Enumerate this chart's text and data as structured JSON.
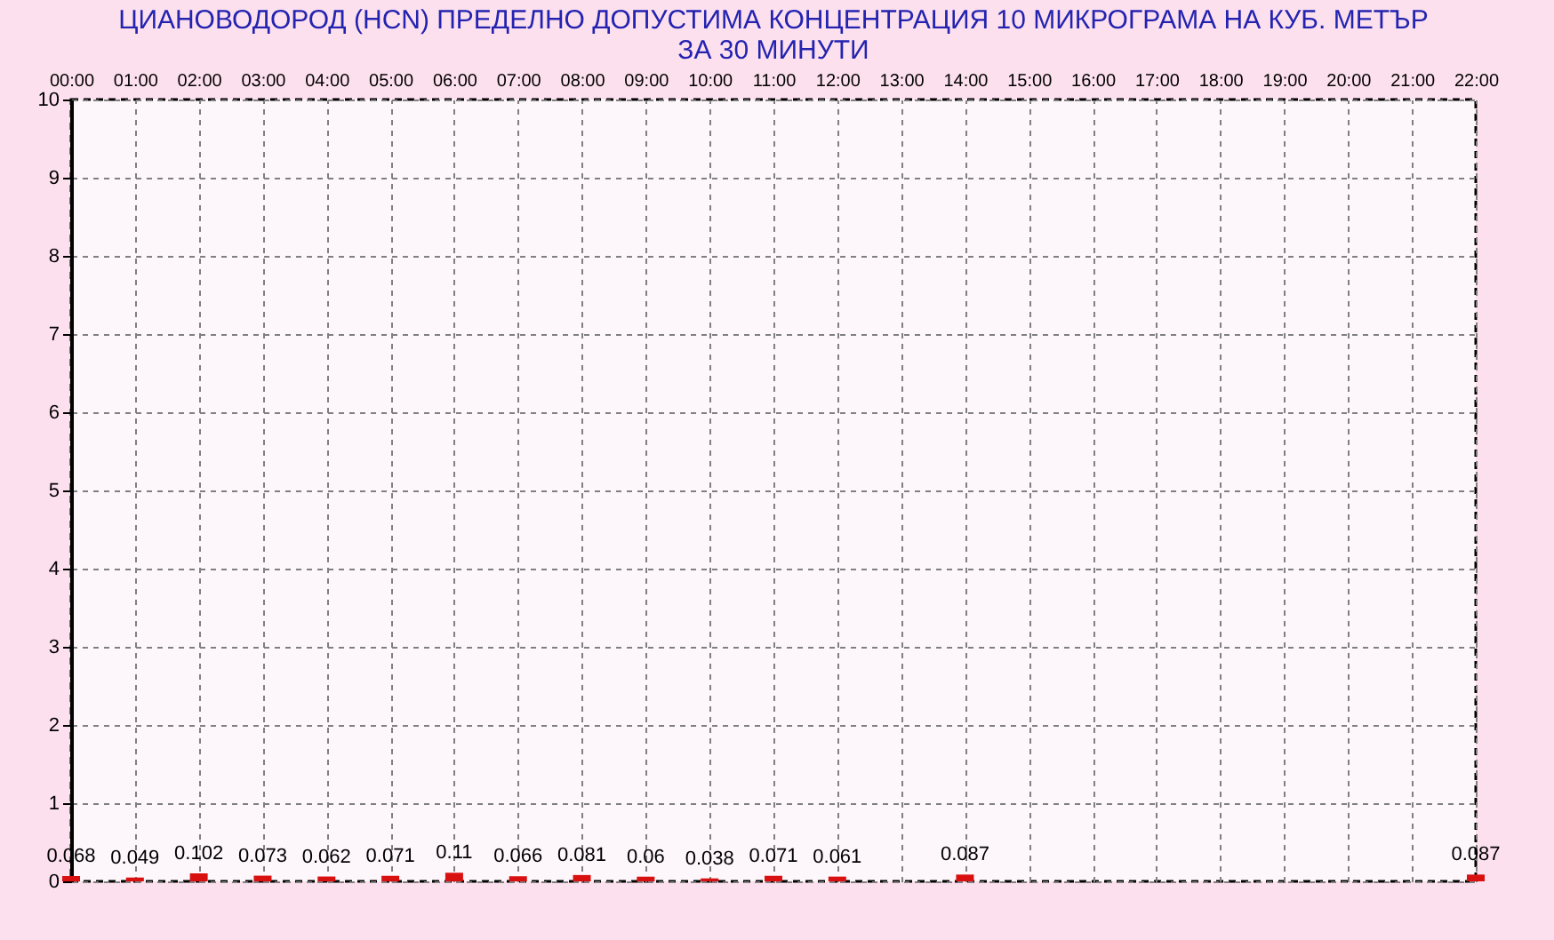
{
  "chart_data": {
    "type": "bar",
    "title": [
      "ЦИАНОВОДОРОД      (HCN)    ПРЕДЕЛНО ДОПУСТИМА КОНЦЕНТРАЦИЯ 10 МИКРОГРАМА  НА КУБ. МЕТЪР",
      "ЗА 30 МИНУТИ"
    ],
    "categories": [
      "00:00",
      "01:00",
      "02:00",
      "03:00",
      "04:00",
      "05:00",
      "06:00",
      "07:00",
      "08:00",
      "09:00",
      "10:00",
      "11:00",
      "12:00",
      "13:00",
      "14:00",
      "15:00",
      "16:00",
      "17:00",
      "18:00",
      "19:00",
      "20:00",
      "21:00",
      "22:00"
    ],
    "values": [
      0.068,
      0.049,
      0.102,
      0.073,
      0.062,
      0.071,
      0.11,
      0.066,
      0.081,
      0.06,
      0.038,
      0.071,
      0.061,
      null,
      0.087,
      null,
      null,
      null,
      null,
      null,
      null,
      null,
      0.087
    ],
    "color": "#d81010",
    "ylim": [
      0,
      10
    ],
    "yticks": [
      0,
      1,
      2,
      3,
      4,
      5,
      6,
      7,
      8,
      9,
      10
    ],
    "grid": true,
    "data_labels": true
  }
}
